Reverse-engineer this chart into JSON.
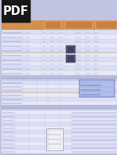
{
  "bg_color": "#c0c4e0",
  "doc_bg": "#c8cce8",
  "header_orange": "#d4904a",
  "header_orange2": "#c88040",
  "row_light": "#d0d4ee",
  "row_lighter": "#dcdff5",
  "row_white": "#e8eaf8",
  "line_color": "#9090b8",
  "sep_blue": "#9098c8",
  "info_box_bg": "#b0bee8",
  "text_blue_dark": "#2030a0",
  "pdf_bg": "#181818",
  "pdf_text": "#ffffff",
  "transformer_dark": "#6060808",
  "white": "#ffffff",
  "section_header_bg": "#b8bcd8",
  "subsection_bg": "#c8ccec"
}
